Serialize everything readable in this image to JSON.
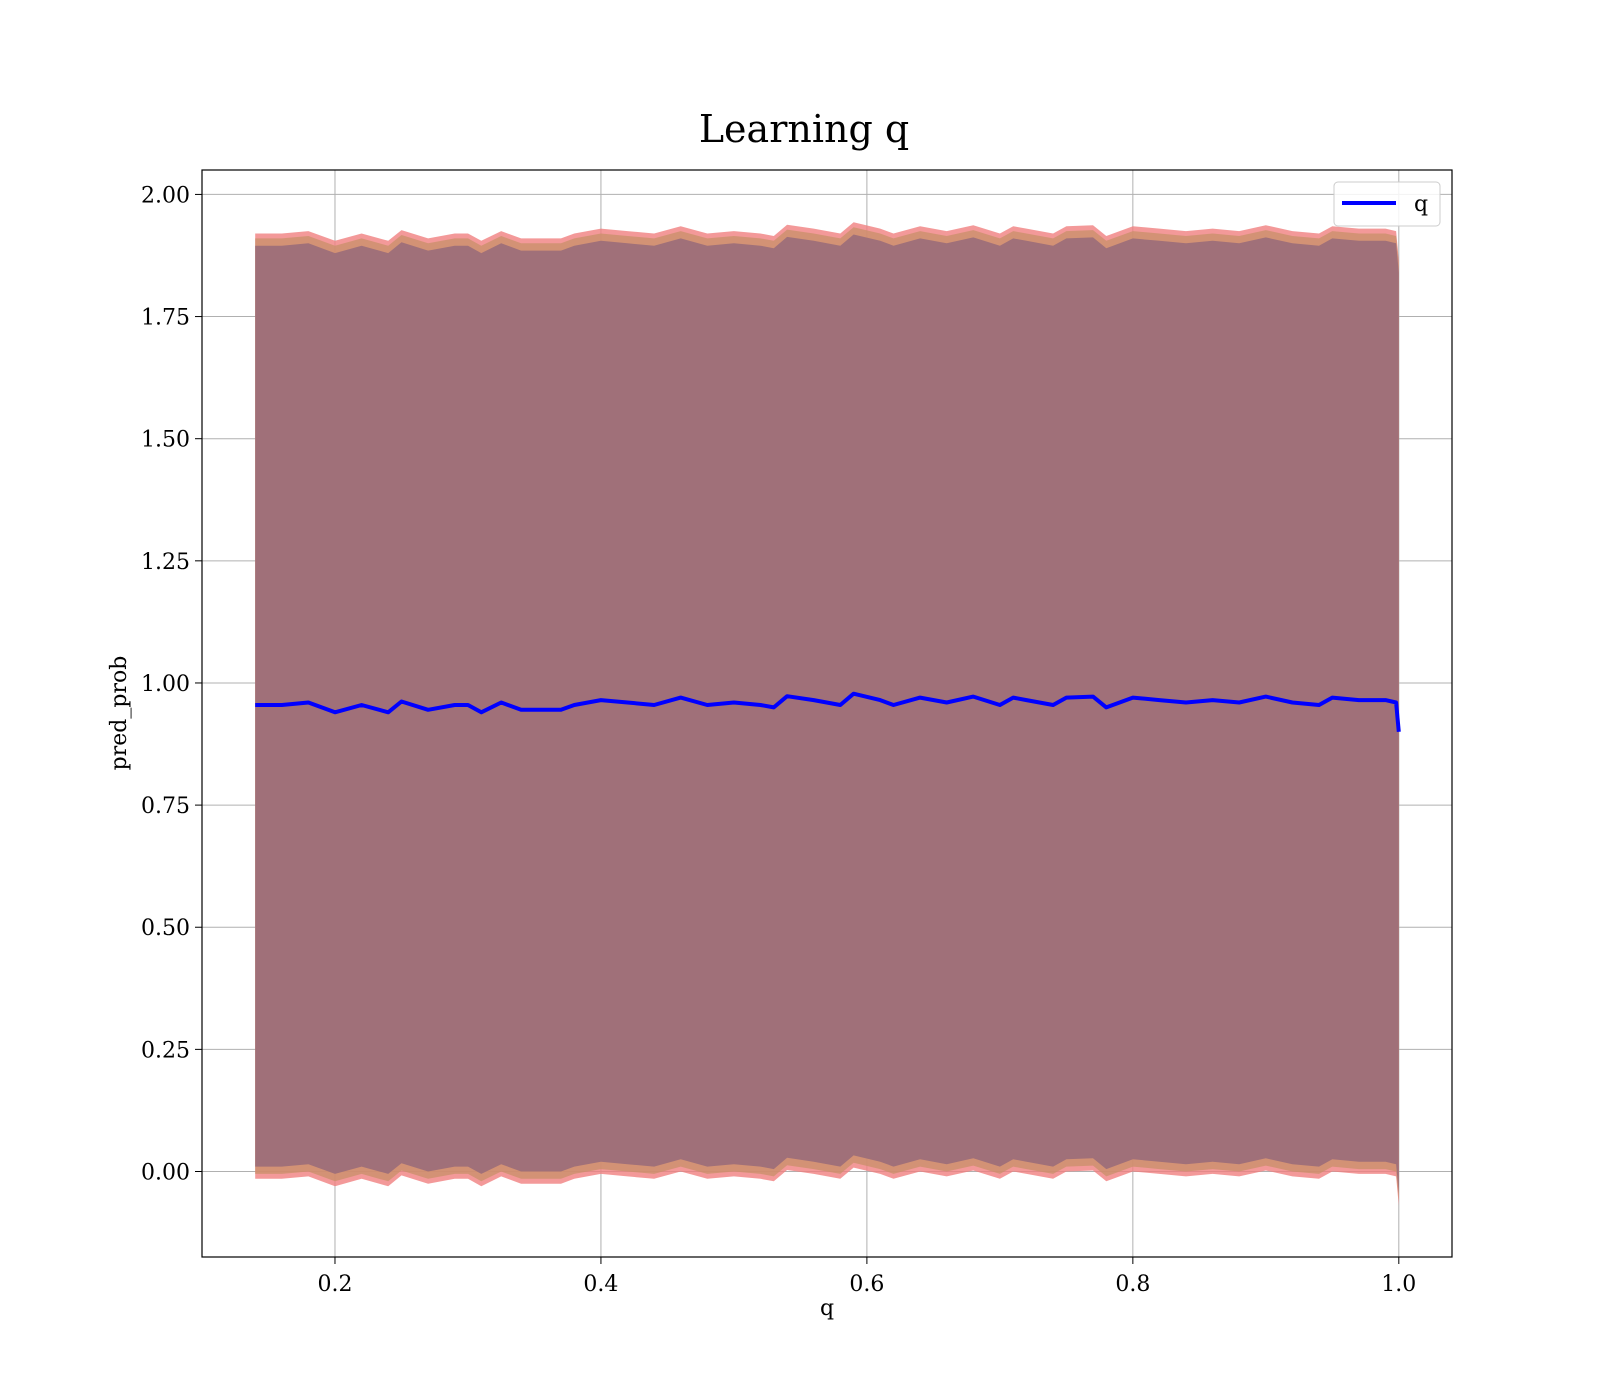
{
  "chart_data": {
    "type": "line",
    "title": "Learning q",
    "xlabel": "q",
    "ylabel": "pred_prob",
    "xlim": [
      0.1,
      1.04
    ],
    "ylim": [
      -0.175,
      2.05
    ],
    "x_ticks": [
      "0.2",
      "0.4",
      "0.6",
      "0.8",
      "1.0"
    ],
    "y_ticks": [
      "0.00",
      "0.25",
      "0.50",
      "0.75",
      "1.00",
      "1.25",
      "1.50",
      "1.75",
      "2.00"
    ],
    "grid": true,
    "legend_position": "top-right",
    "colors": {
      "line": "#0000ff",
      "band_outer": "#f08080",
      "band_mid": "#c8906a",
      "band_inner": "#8b4a5c",
      "grid": "#b0b0b0"
    },
    "series": [
      {
        "name": "q",
        "x": [
          0.14,
          0.16,
          0.18,
          0.2,
          0.22,
          0.24,
          0.25,
          0.27,
          0.29,
          0.3,
          0.31,
          0.325,
          0.34,
          0.37,
          0.38,
          0.4,
          0.42,
          0.44,
          0.46,
          0.48,
          0.5,
          0.52,
          0.53,
          0.54,
          0.56,
          0.58,
          0.59,
          0.61,
          0.62,
          0.64,
          0.66,
          0.68,
          0.7,
          0.71,
          0.72,
          0.74,
          0.75,
          0.77,
          0.78,
          0.8,
          0.82,
          0.84,
          0.86,
          0.88,
          0.9,
          0.92,
          0.94,
          0.95,
          0.97,
          0.99,
          0.998,
          1.0
        ],
        "values": [
          0.955,
          0.955,
          0.96,
          0.94,
          0.955,
          0.94,
          0.962,
          0.945,
          0.955,
          0.955,
          0.94,
          0.96,
          0.945,
          0.945,
          0.955,
          0.965,
          0.96,
          0.955,
          0.97,
          0.955,
          0.96,
          0.955,
          0.95,
          0.973,
          0.965,
          0.955,
          0.978,
          0.965,
          0.955,
          0.97,
          0.96,
          0.972,
          0.955,
          0.97,
          0.965,
          0.955,
          0.97,
          0.972,
          0.95,
          0.97,
          0.965,
          0.96,
          0.965,
          0.96,
          0.972,
          0.96,
          0.955,
          0.97,
          0.965,
          0.965,
          0.96,
          0.9
        ]
      }
    ],
    "bands": [
      {
        "name": "outer",
        "upper_offset": 0.965,
        "lower_offset": -0.97
      },
      {
        "name": "mid",
        "upper_offset": 0.955,
        "lower_offset": -0.96
      },
      {
        "name": "inner",
        "upper_offset": 0.94,
        "lower_offset": -0.945
      }
    ]
  }
}
